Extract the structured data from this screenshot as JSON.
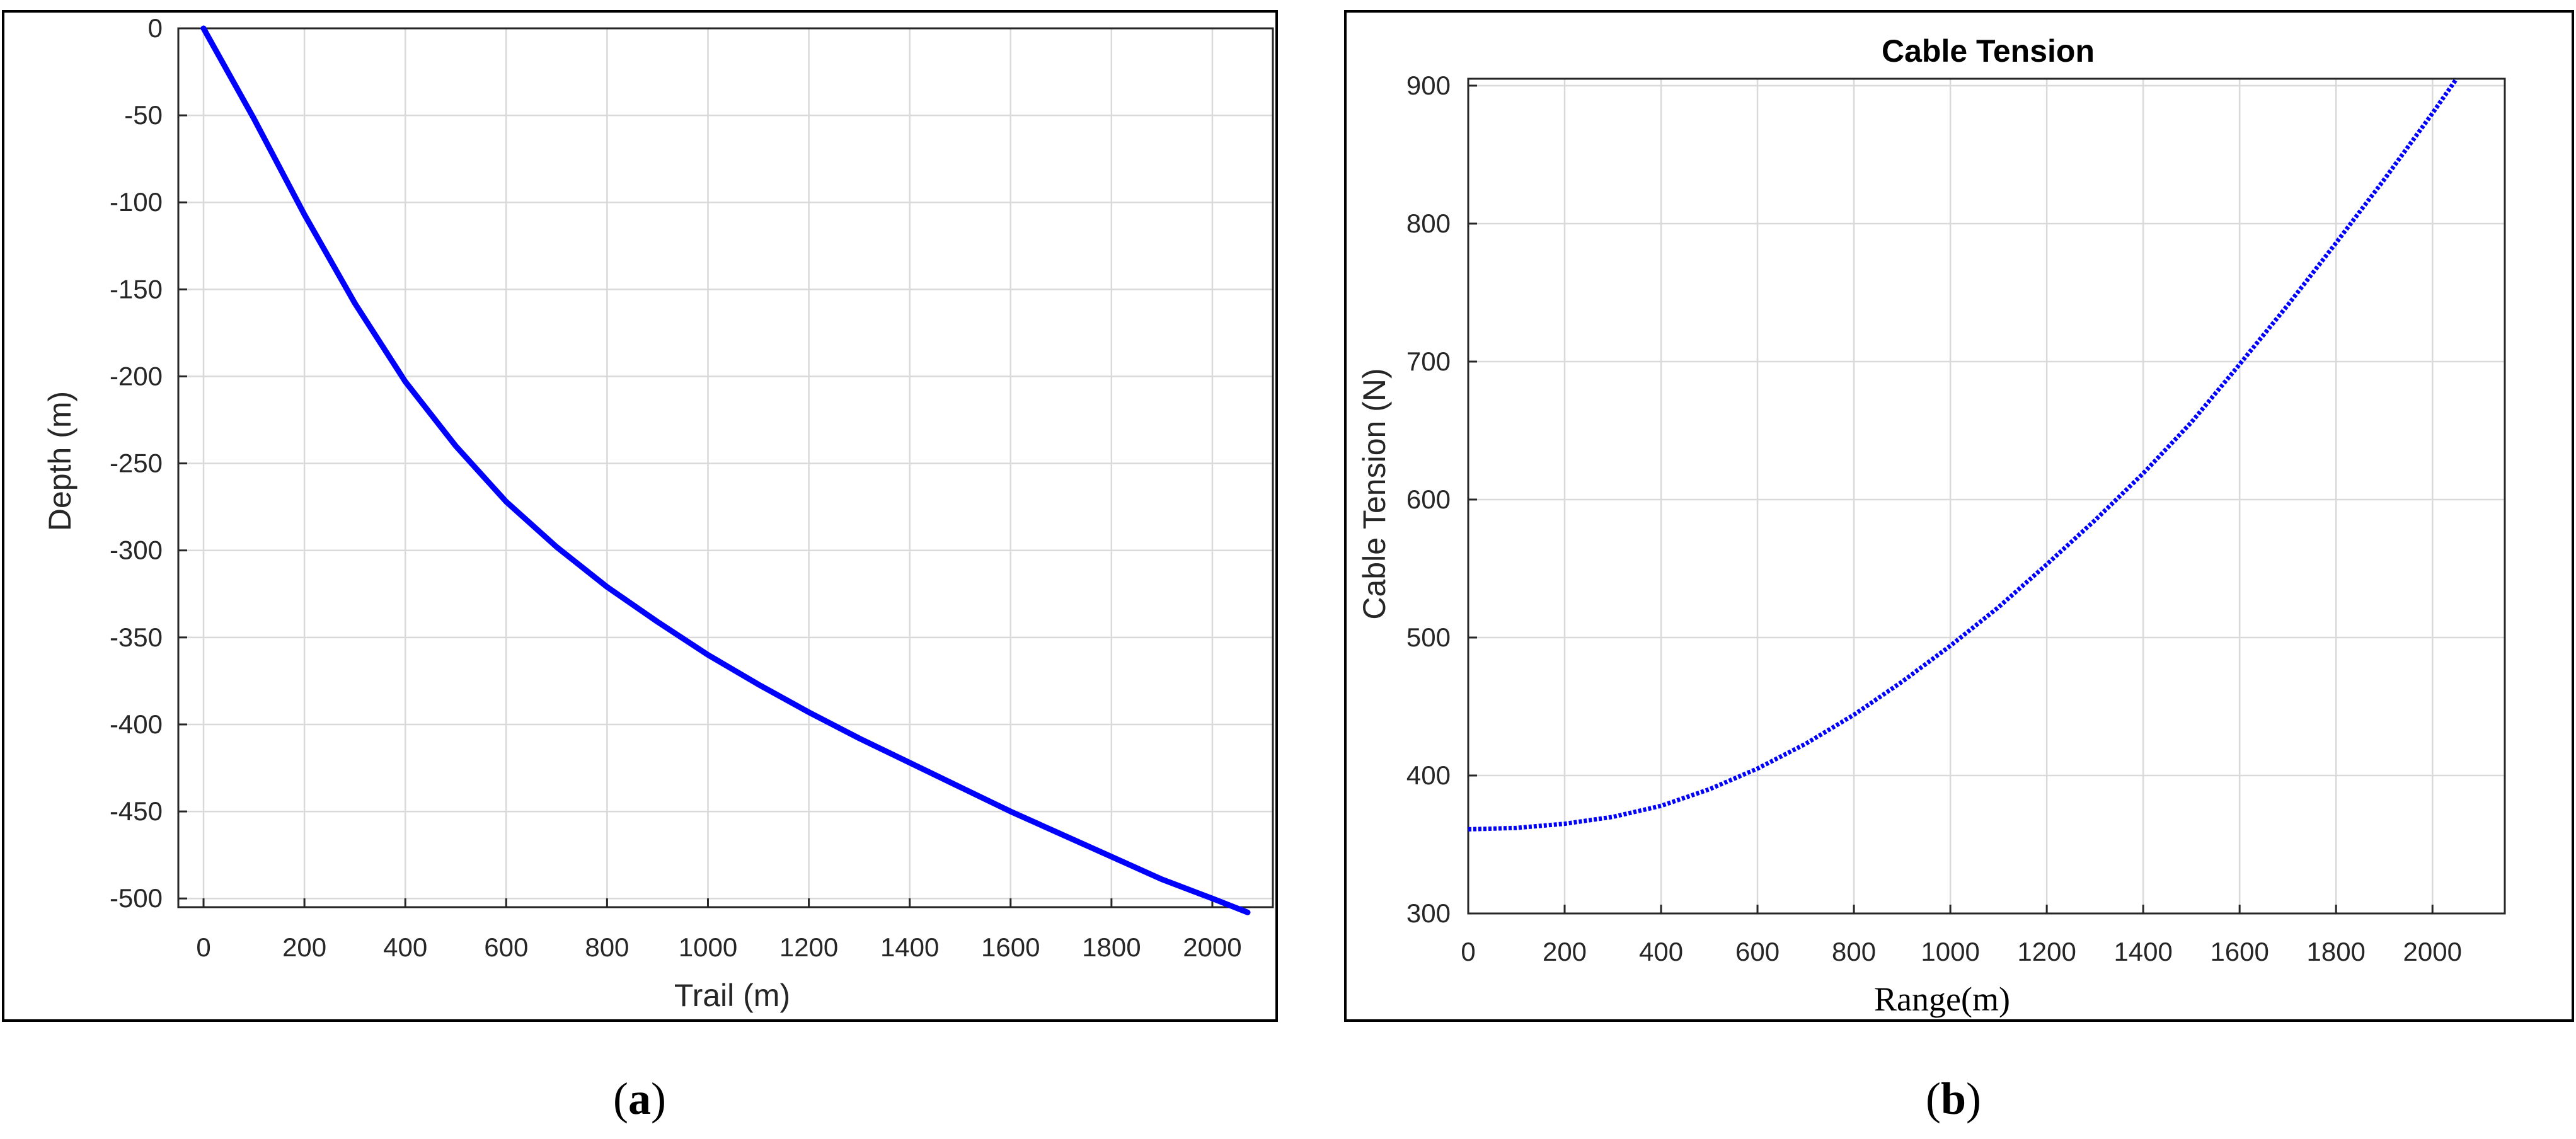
{
  "colors": {
    "line": "#0000ff",
    "grid": "#d9d9d9",
    "axis": "#262626"
  },
  "captions": {
    "a": "a",
    "b": "b"
  },
  "chart_data": [
    {
      "type": "line",
      "panel": "a",
      "title": "",
      "xlabel": "Trail (m)",
      "ylabel": "Depth (m)",
      "xlim": [
        -50,
        2120
      ],
      "ylim": [
        -505,
        0
      ],
      "xticks": [
        0,
        200,
        400,
        600,
        800,
        1000,
        1200,
        1400,
        1600,
        1800,
        2000
      ],
      "yticks": [
        0,
        -50,
        -100,
        -150,
        -200,
        -250,
        -300,
        -350,
        -400,
        -450,
        -500
      ],
      "xtick_labels": [
        "0",
        "200",
        "400",
        "600",
        "800",
        "1000",
        "1200",
        "1400",
        "1600",
        "1800",
        "2000"
      ],
      "ytick_labels": [
        "0",
        "-50",
        "-100",
        "-150",
        "-200",
        "-250",
        "-300",
        "-350",
        "-400",
        "-450",
        "-500"
      ],
      "grid": true,
      "series": [
        {
          "color": "#0000ff",
          "x": [
            0,
            100,
            200,
            300,
            400,
            500,
            600,
            700,
            800,
            900,
            1000,
            1100,
            1200,
            1300,
            1400,
            1500,
            1600,
            1700,
            1800,
            1900,
            2000,
            2070
          ],
          "y": [
            0,
            -52,
            -107,
            -158,
            -203,
            -240,
            -272,
            -298,
            -321,
            -341,
            -360,
            -377,
            -393,
            -408,
            -422,
            -436,
            -450,
            -463,
            -476,
            -489,
            -500,
            -508
          ]
        }
      ]
    },
    {
      "type": "line",
      "panel": "b",
      "title": "Cable Tension",
      "xlabel": "Range(m)",
      "ylabel": "Cable Tension (N)",
      "xlim": [
        0,
        2150
      ],
      "ylim": [
        300,
        905
      ],
      "xticks": [
        0,
        200,
        400,
        600,
        800,
        1000,
        1200,
        1400,
        1600,
        1800,
        2000
      ],
      "yticks": [
        300,
        400,
        500,
        600,
        700,
        800,
        900
      ],
      "xtick_labels": [
        "0",
        "200",
        "400",
        "600",
        "800",
        "1000",
        "1200",
        "1400",
        "1600",
        "1800",
        "2000"
      ],
      "ytick_labels": [
        "300",
        "400",
        "500",
        "600",
        "700",
        "800",
        "900"
      ],
      "grid": true,
      "series": [
        {
          "color": "#0000ff",
          "x": [
            0,
            100,
            200,
            300,
            400,
            500,
            600,
            700,
            800,
            900,
            1000,
            1100,
            1200,
            1300,
            1400,
            1500,
            1600,
            1700,
            1800,
            1900,
            2000,
            2050
          ],
          "y": [
            361,
            362,
            365,
            370,
            378,
            390,
            405,
            423,
            444,
            468,
            494,
            522,
            553,
            585,
            619,
            656,
            698,
            741,
            786,
            832,
            880,
            905
          ]
        }
      ]
    }
  ]
}
